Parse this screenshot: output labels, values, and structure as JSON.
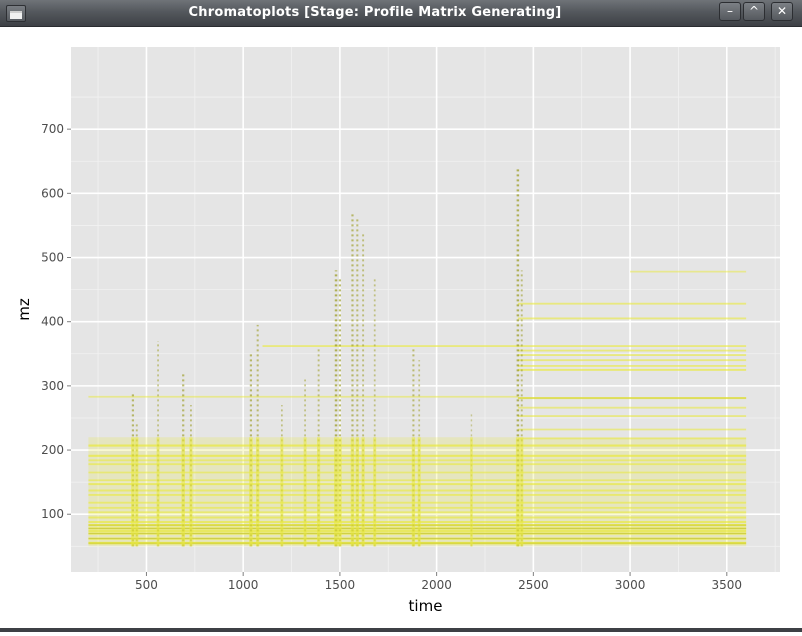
{
  "window": {
    "title": "Chromatoplots [Stage: Profile Matrix Generating]",
    "controls": {
      "minimize": "–",
      "maximize": "^",
      "close": "✕"
    }
  },
  "chart_data": {
    "type": "scatter",
    "xlabel": "time",
    "ylabel": "mz",
    "xlim": [
      110,
      3775
    ],
    "ylim": [
      10,
      828
    ],
    "x_ticks": [
      500,
      1000,
      1500,
      2000,
      2500,
      3000,
      3500
    ],
    "y_ticks": [
      100,
      200,
      300,
      400,
      500,
      600,
      700
    ],
    "grid": true,
    "background": "#e5e5e5",
    "point_color": "#eaea3c",
    "dense_point_color": "#9e9e28",
    "time_range": [
      200,
      3600
    ],
    "mz_range": [
      50,
      650
    ],
    "horizontal_traces": [
      {
        "mz": 55,
        "from": 200,
        "to": 3600,
        "weight": 1
      },
      {
        "mz": 62,
        "from": 200,
        "to": 3600,
        "weight": 0.8
      },
      {
        "mz": 70,
        "from": 200,
        "to": 3600,
        "weight": 0.9
      },
      {
        "mz": 74,
        "from": 200,
        "to": 3600,
        "weight": 0.7
      },
      {
        "mz": 78,
        "from": 200,
        "to": 3600,
        "weight": 0.8
      },
      {
        "mz": 83,
        "from": 200,
        "to": 3600,
        "weight": 0.9
      },
      {
        "mz": 88,
        "from": 200,
        "to": 3600,
        "weight": 0.6
      },
      {
        "mz": 95,
        "from": 200,
        "to": 3600,
        "weight": 0.6
      },
      {
        "mz": 103,
        "from": 200,
        "to": 3600,
        "weight": 0.5
      },
      {
        "mz": 110,
        "from": 200,
        "to": 3600,
        "weight": 0.5
      },
      {
        "mz": 118,
        "from": 200,
        "to": 3600,
        "weight": 0.5
      },
      {
        "mz": 130,
        "from": 200,
        "to": 3600,
        "weight": 0.5
      },
      {
        "mz": 137,
        "from": 200,
        "to": 3600,
        "weight": 0.5
      },
      {
        "mz": 147,
        "from": 200,
        "to": 3600,
        "weight": 0.6
      },
      {
        "mz": 153,
        "from": 200,
        "to": 3600,
        "weight": 0.4
      },
      {
        "mz": 165,
        "from": 200,
        "to": 3600,
        "weight": 0.4
      },
      {
        "mz": 178,
        "from": 200,
        "to": 3600,
        "weight": 0.5
      },
      {
        "mz": 184,
        "from": 200,
        "to": 3600,
        "weight": 0.4
      },
      {
        "mz": 191,
        "from": 200,
        "to": 3600,
        "weight": 0.7
      },
      {
        "mz": 207,
        "from": 200,
        "to": 3600,
        "weight": 0.7
      },
      {
        "mz": 218,
        "from": 2420,
        "to": 3600,
        "weight": 0.4
      },
      {
        "mz": 232,
        "from": 2420,
        "to": 3600,
        "weight": 0.4
      },
      {
        "mz": 253,
        "from": 2420,
        "to": 3600,
        "weight": 0.4
      },
      {
        "mz": 266,
        "from": 2420,
        "to": 3600,
        "weight": 0.4
      },
      {
        "mz": 281,
        "from": 2420,
        "to": 3600,
        "weight": 0.8
      },
      {
        "mz": 283,
        "from": 200,
        "to": 2420,
        "weight": 0.3
      },
      {
        "mz": 325,
        "from": 2420,
        "to": 3600,
        "weight": 0.6
      },
      {
        "mz": 331,
        "from": 2420,
        "to": 3600,
        "weight": 0.5
      },
      {
        "mz": 340,
        "from": 2420,
        "to": 3600,
        "weight": 0.5
      },
      {
        "mz": 348,
        "from": 2420,
        "to": 3600,
        "weight": 0.5
      },
      {
        "mz": 355,
        "from": 2420,
        "to": 3600,
        "weight": 0.5
      },
      {
        "mz": 362,
        "from": 1100,
        "to": 3600,
        "weight": 0.5
      },
      {
        "mz": 405,
        "from": 2420,
        "to": 3600,
        "weight": 0.5
      },
      {
        "mz": 428,
        "from": 2420,
        "to": 3600,
        "weight": 0.5
      },
      {
        "mz": 478,
        "from": 3000,
        "to": 3600,
        "weight": 0.3
      }
    ],
    "vertical_features": [
      {
        "time": 430,
        "mz_max": 290,
        "weight": 0.8
      },
      {
        "time": 450,
        "mz_max": 240,
        "weight": 0.6
      },
      {
        "time": 560,
        "mz_max": 370,
        "weight": 0.5
      },
      {
        "time": 690,
        "mz_max": 318,
        "weight": 0.8
      },
      {
        "time": 730,
        "mz_max": 270,
        "weight": 0.6
      },
      {
        "time": 1040,
        "mz_max": 350,
        "weight": 0.8
      },
      {
        "time": 1075,
        "mz_max": 395,
        "weight": 0.7
      },
      {
        "time": 1200,
        "mz_max": 270,
        "weight": 0.5
      },
      {
        "time": 1320,
        "mz_max": 310,
        "weight": 0.5
      },
      {
        "time": 1390,
        "mz_max": 360,
        "weight": 0.6
      },
      {
        "time": 1480,
        "mz_max": 480,
        "weight": 1
      },
      {
        "time": 1500,
        "mz_max": 470,
        "weight": 0.8
      },
      {
        "time": 1565,
        "mz_max": 570,
        "weight": 0.8
      },
      {
        "time": 1590,
        "mz_max": 560,
        "weight": 0.7
      },
      {
        "time": 1620,
        "mz_max": 540,
        "weight": 0.6
      },
      {
        "time": 1680,
        "mz_max": 470,
        "weight": 0.5
      },
      {
        "time": 1880,
        "mz_max": 360,
        "weight": 0.7
      },
      {
        "time": 1910,
        "mz_max": 340,
        "weight": 0.5
      },
      {
        "time": 2180,
        "mz_max": 260,
        "weight": 0.3
      },
      {
        "time": 2420,
        "mz_max": 640,
        "weight": 1
      },
      {
        "time": 2440,
        "mz_max": 480,
        "weight": 0.6
      }
    ]
  }
}
